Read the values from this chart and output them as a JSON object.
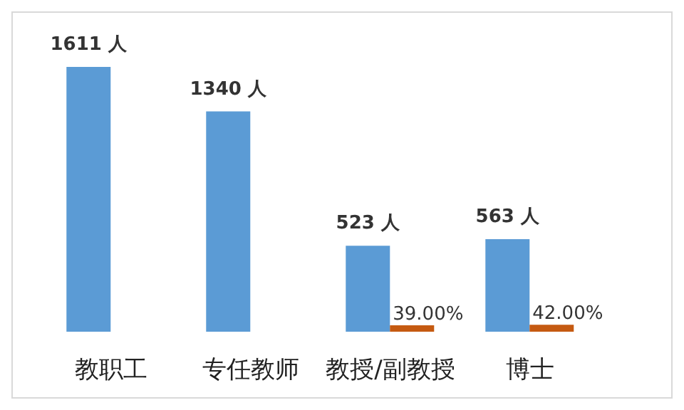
{
  "chart_data": {
    "type": "bar",
    "categories": [
      "教职工",
      "专任教师",
      "教授/副教授",
      "博士"
    ],
    "series": [
      {
        "color": "#5b9bd5",
        "values": [
          1611,
          1340,
          523,
          563
        ],
        "value_labels": [
          "1611 人",
          "1340 人",
          "523 人",
          "563 人"
        ]
      },
      {
        "color": "#c55a11",
        "values": [
          null,
          null,
          39,
          42
        ],
        "value_labels": [
          null,
          null,
          "39.00%",
          "42.00%"
        ]
      }
    ],
    "grid": false,
    "legend": false
  }
}
